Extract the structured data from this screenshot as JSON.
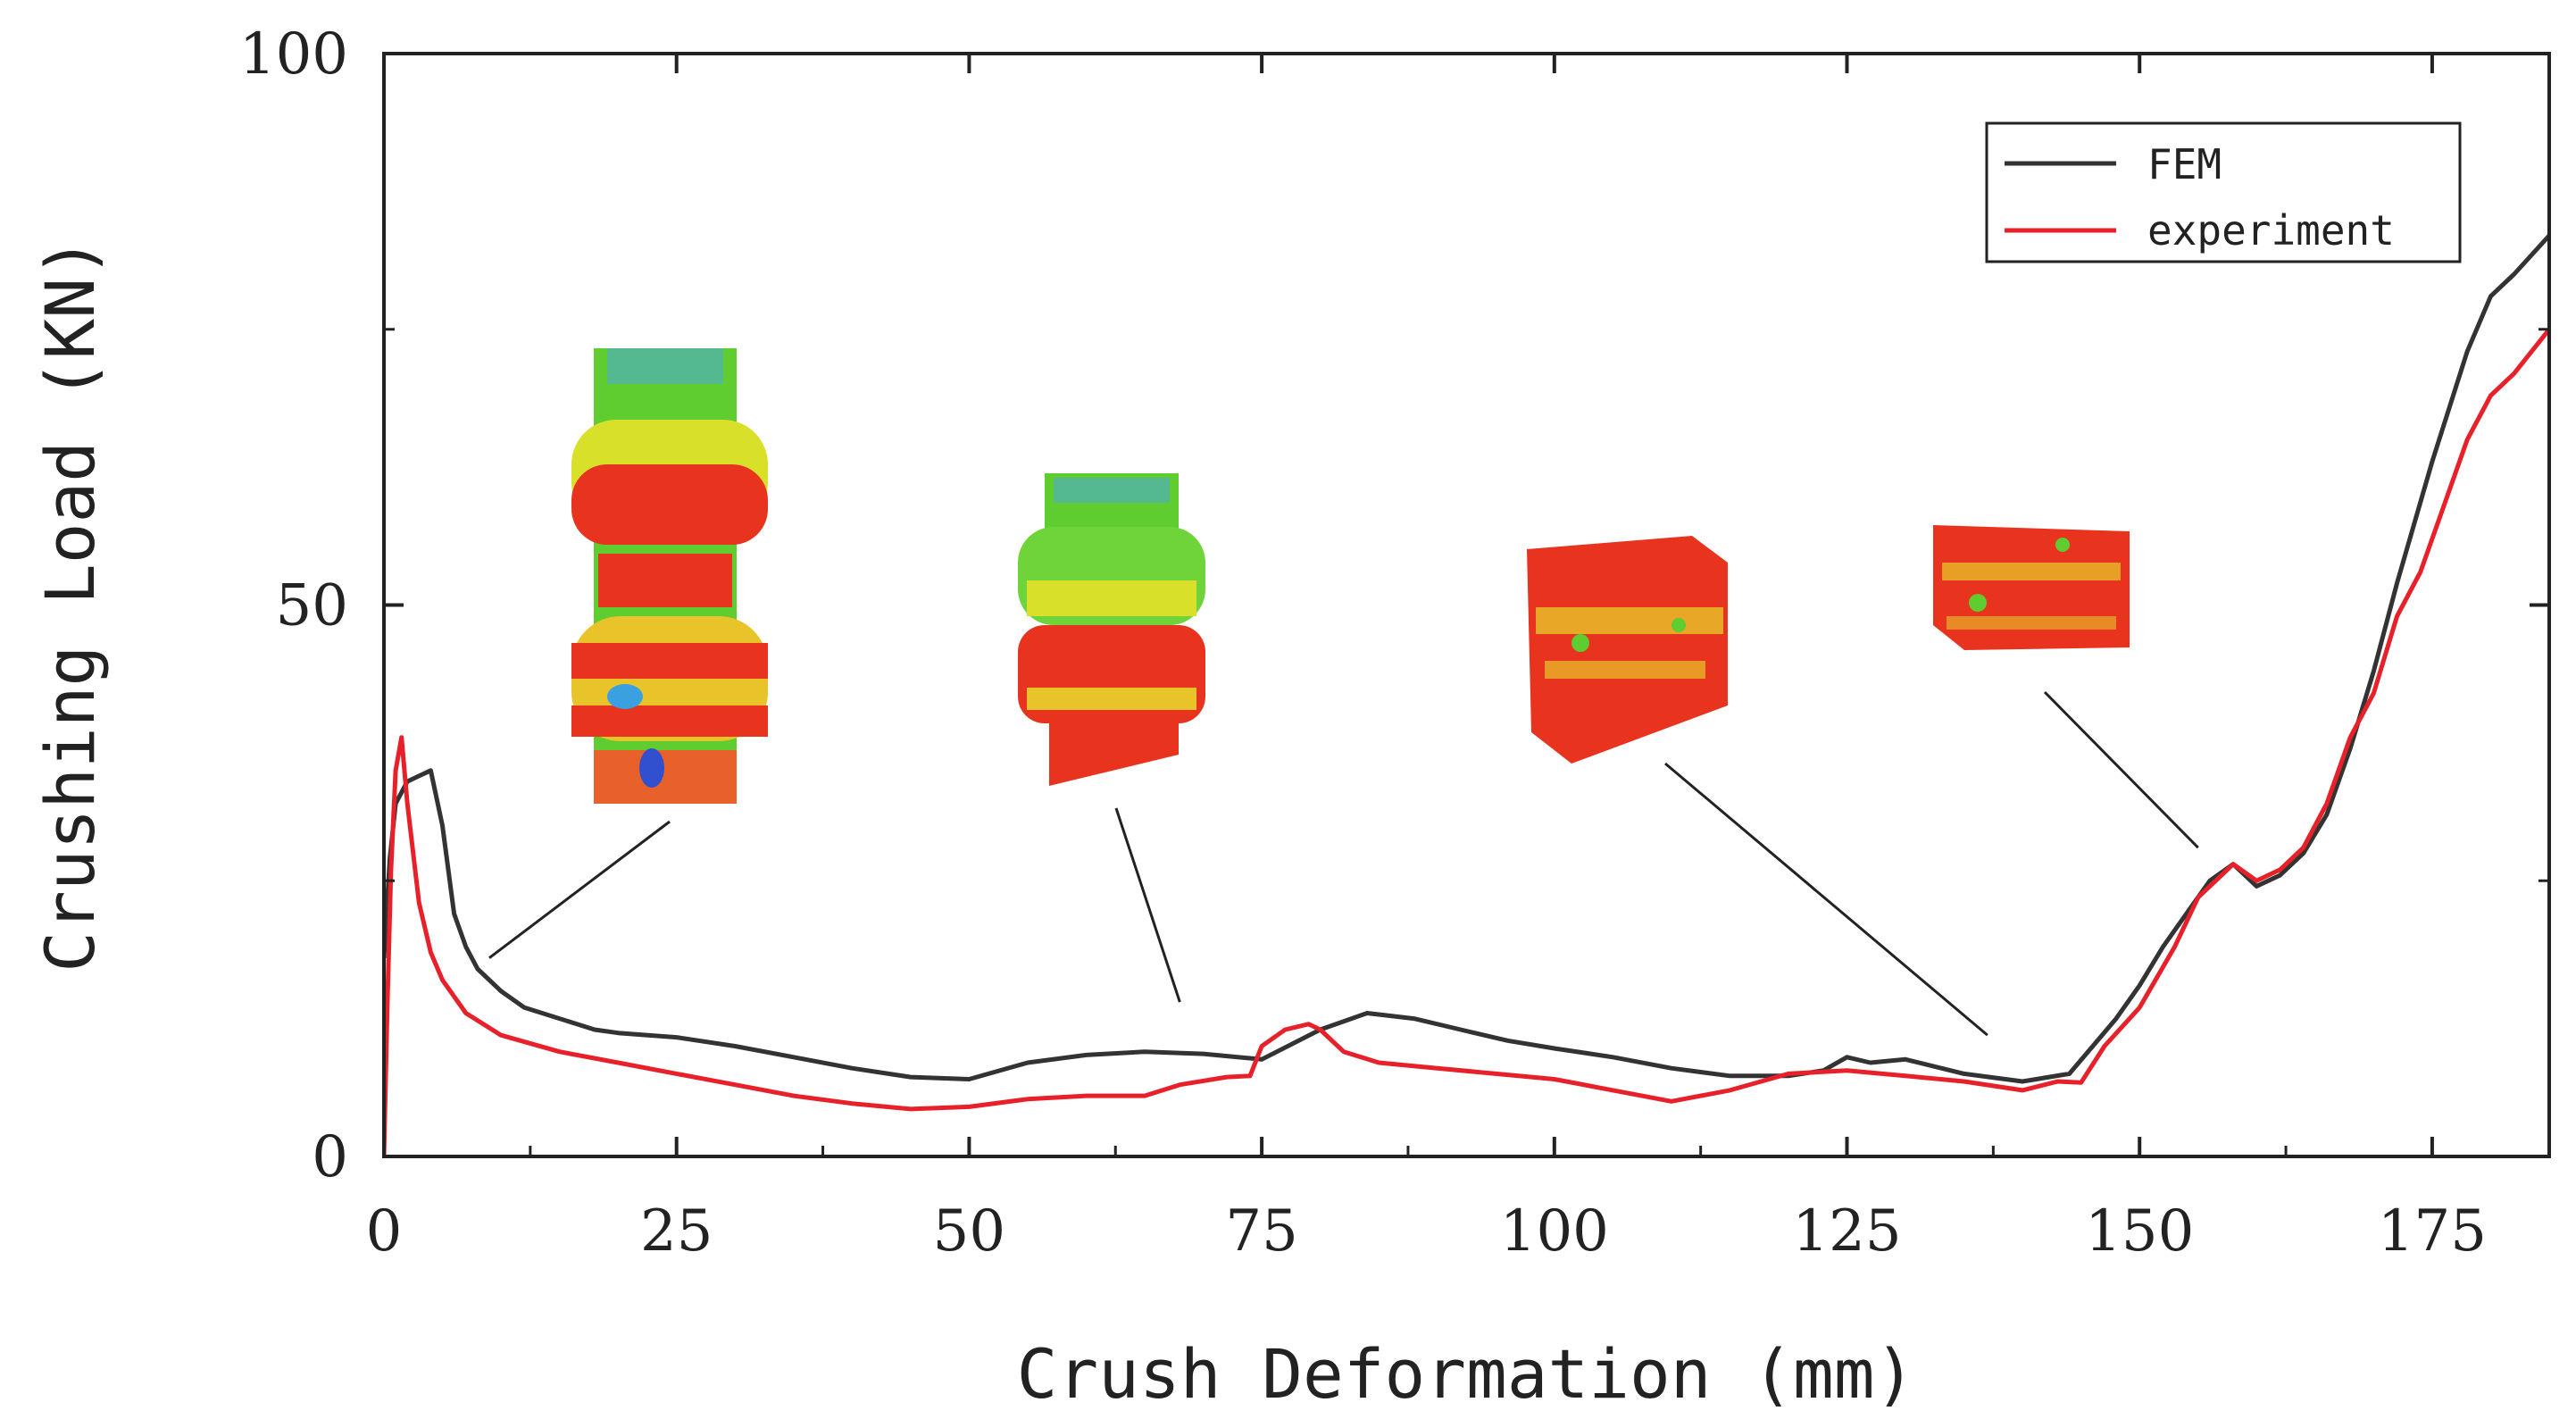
{
  "chart_data": {
    "type": "line",
    "title": "",
    "xlabel": "Crush Deformation (mm)",
    "ylabel": "Crushing Load (KN)",
    "xlim": [
      0,
      185
    ],
    "ylim": [
      0,
      100
    ],
    "xticks": [
      0,
      25,
      50,
      75,
      100,
      125,
      150,
      175
    ],
    "yticks": [
      0,
      50,
      100
    ],
    "xtick_labels": [
      "0",
      "25",
      "50",
      "75",
      "100",
      "125",
      "150",
      "175"
    ],
    "ytick_labels": [
      "0",
      "50",
      "100"
    ],
    "grid": false,
    "legend_position": "top-right",
    "series": [
      {
        "name": "FEM",
        "color": "#333333",
        "x": [
          0,
          0.5,
          1,
          2,
          3,
          4,
          5,
          6,
          7,
          8,
          10,
          12,
          15,
          18,
          20,
          25,
          30,
          35,
          40,
          45,
          50,
          55,
          60,
          65,
          70,
          75,
          80,
          84,
          88,
          92,
          96,
          100,
          105,
          110,
          115,
          120,
          123,
          125,
          127,
          130,
          135,
          140,
          144,
          146,
          148,
          150,
          152,
          154,
          156,
          158,
          160,
          162,
          164,
          166,
          168,
          170,
          172,
          175,
          178,
          180,
          182,
          185
        ],
        "y": [
          18,
          27,
          32,
          34,
          34.5,
          35,
          30,
          22,
          19,
          17,
          15,
          13.5,
          12.5,
          11.5,
          11.2,
          10.8,
          10,
          9,
          8,
          7.2,
          7,
          8.5,
          9.2,
          9.5,
          9.3,
          8.8,
          11.5,
          13,
          12.5,
          11.5,
          10.5,
          9.8,
          9,
          8,
          7.3,
          7.3,
          7.8,
          9,
          8.5,
          8.8,
          7.5,
          6.8,
          7.5,
          10,
          12.5,
          15.5,
          19,
          22,
          25,
          26.5,
          24.5,
          25.5,
          27.5,
          31,
          37,
          44,
          52,
          63,
          73,
          78,
          80,
          83.5
        ]
      },
      {
        "name": "experiment",
        "color": "#e8202a",
        "x": [
          0,
          0.3,
          0.6,
          1,
          1.5,
          2,
          3,
          4,
          5,
          7,
          10,
          15,
          20,
          25,
          30,
          35,
          40,
          45,
          50,
          55,
          60,
          65,
          68,
          72,
          74,
          75,
          77,
          79,
          80,
          82,
          85,
          90,
          95,
          100,
          105,
          110,
          115,
          120,
          125,
          130,
          135,
          140,
          143,
          145,
          147,
          150,
          153,
          155,
          157,
          158,
          160,
          162,
          164,
          166,
          168,
          170,
          172,
          174,
          176,
          178,
          180,
          182,
          185
        ],
        "y": [
          0,
          14,
          26,
          35,
          38,
          32,
          23,
          18.5,
          16,
          13,
          11,
          9.5,
          8.5,
          7.5,
          6.5,
          5.5,
          4.8,
          4.3,
          4.5,
          5.2,
          5.5,
          5.5,
          6.5,
          7.2,
          7.3,
          10,
          11.5,
          12,
          11.5,
          9.5,
          8.5,
          8,
          7.5,
          7,
          6,
          5,
          6,
          7.5,
          7.8,
          7.3,
          6.8,
          6,
          6.8,
          6.7,
          10,
          13.5,
          19,
          23.5,
          25.5,
          26.5,
          25,
          26,
          28,
          32,
          38,
          42,
          49,
          53,
          59,
          65,
          69,
          71,
          75
        ]
      }
    ],
    "annotation_lines": [
      {
        "label": "inset-1",
        "to": [
          9,
          18
        ]
      },
      {
        "label": "inset-2",
        "to": [
          68,
          14
        ]
      },
      {
        "label": "inset-3",
        "to": [
          137,
          11
        ]
      },
      {
        "label": "inset-4",
        "to": [
          155,
          28
        ]
      }
    ]
  }
}
